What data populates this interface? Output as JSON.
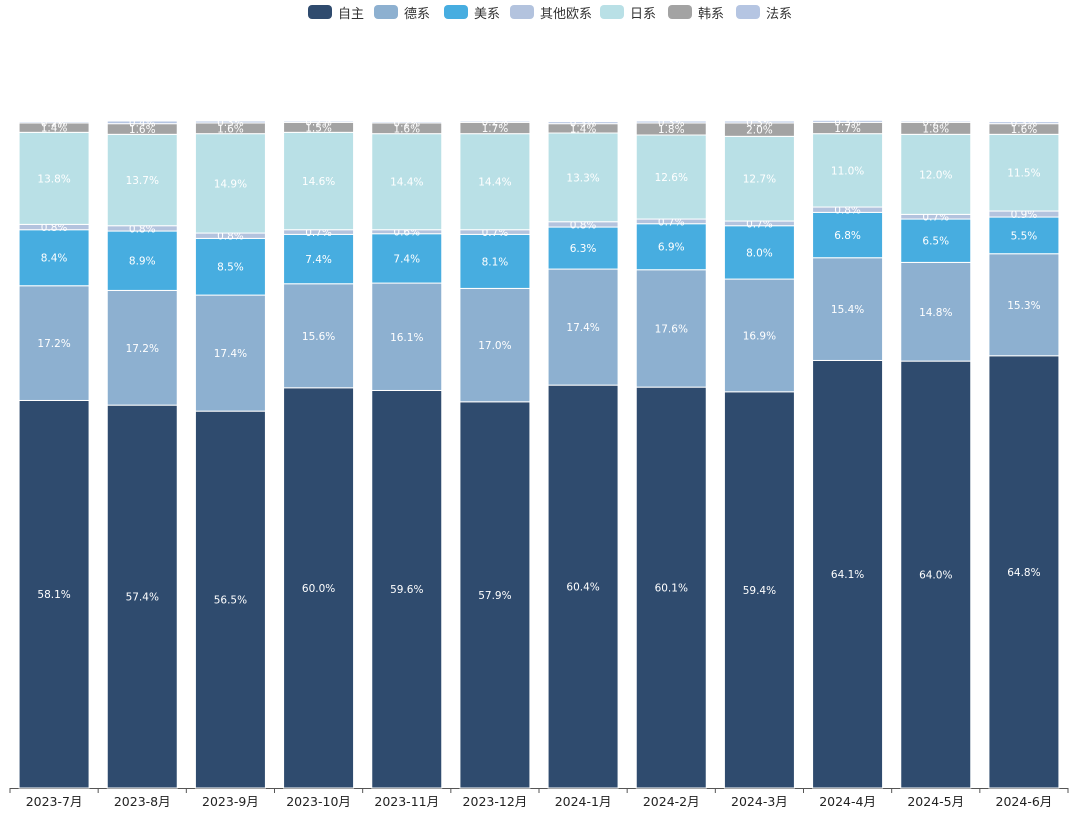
{
  "chart_data": {
    "type": "bar",
    "stacked": true,
    "legend_position": "top-center",
    "categories": [
      "2023-7月",
      "2023-8月",
      "2023-9月",
      "2023-10月",
      "2023-11月",
      "2023-12月",
      "2024-1月",
      "2024-2月",
      "2024-3月",
      "2024-4月",
      "2024-5月",
      "2024-6月"
    ],
    "series": [
      {
        "name": "自主",
        "color": "#2f4b6e",
        "values": [
          58.1,
          57.4,
          56.5,
          60.0,
          59.6,
          57.9,
          60.4,
          60.1,
          59.4,
          64.1,
          64.0,
          64.8
        ]
      },
      {
        "name": "德系",
        "color": "#8db0d0",
        "values": [
          17.2,
          17.2,
          17.4,
          15.6,
          16.1,
          17.0,
          17.4,
          17.6,
          16.9,
          15.4,
          14.8,
          15.3
        ]
      },
      {
        "name": "美系",
        "color": "#47ade0",
        "values": [
          8.4,
          8.9,
          8.5,
          7.4,
          7.4,
          8.1,
          6.3,
          6.9,
          8.0,
          6.8,
          6.5,
          5.5
        ]
      },
      {
        "name": "其他欧系",
        "color": "#b3c3de",
        "values": [
          0.8,
          0.8,
          0.8,
          0.7,
          0.6,
          0.7,
          0.8,
          0.7,
          0.7,
          0.8,
          0.7,
          0.9
        ]
      },
      {
        "name": "日系",
        "color": "#b9e0e6",
        "values": [
          13.8,
          13.7,
          14.9,
          14.6,
          14.4,
          14.4,
          13.3,
          12.6,
          12.7,
          11.0,
          12.0,
          11.5
        ]
      },
      {
        "name": "韩系",
        "color": "#a3a3a3",
        "values": [
          1.4,
          1.6,
          1.6,
          1.5,
          1.6,
          1.7,
          1.4,
          1.8,
          2.0,
          1.7,
          1.8,
          1.6
        ]
      },
      {
        "name": "法系",
        "color": "#b5c5e2",
        "values": [
          0.2,
          0.4,
          0.3,
          0.2,
          0.2,
          0.2,
          0.3,
          0.3,
          0.3,
          0.3,
          0.2,
          0.3
        ]
      }
    ],
    "label_format": "0.0%",
    "grid": false
  }
}
